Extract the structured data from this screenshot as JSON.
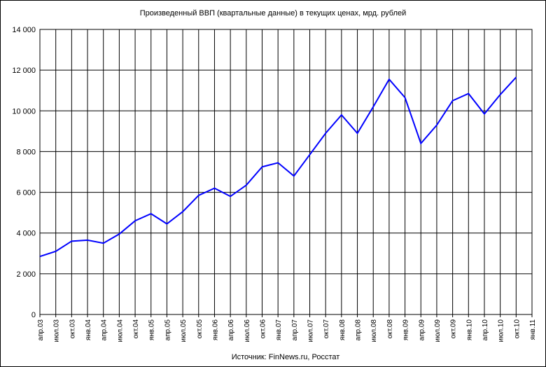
{
  "chart_data": {
    "type": "line",
    "title": "Произведенный ВВП (квартальные данные) в текущих ценах, мрд. рублей",
    "source": "Источник: FinNews.ru, Росстат",
    "categories": [
      "апр.03",
      "июл.03",
      "окт.03",
      "янв.04",
      "апр.04",
      "июл.04",
      "окт.04",
      "янв.05",
      "апр.05",
      "июл.05",
      "окт.05",
      "янв.06",
      "апр.06",
      "июл.06",
      "окт.06",
      "янв.07",
      "апр.07",
      "июл.07",
      "окт.07",
      "янв.08",
      "апр.08",
      "июл.08",
      "окт.08",
      "янв.09",
      "апр.09",
      "июл.09",
      "окт.09",
      "янв.10",
      "апр.10",
      "июл.10",
      "окт.10",
      "янв.11"
    ],
    "series": [
      {
        "color": "#0000ff",
        "values": [
          2850,
          3100,
          3600,
          3650,
          3500,
          3950,
          4600,
          4950,
          4450,
          5050,
          5850,
          6200,
          5800,
          6350,
          7250,
          7450,
          6800,
          7850,
          8900,
          9800,
          8900,
          10200,
          11550,
          10650,
          8400,
          9300,
          10500,
          10850,
          9850,
          10800,
          11650,
          null
        ]
      }
    ],
    "ylim": [
      0,
      14000
    ],
    "yticks": [
      {
        "value": 0,
        "label": "0"
      },
      {
        "value": 2000,
        "label": "2 000"
      },
      {
        "value": 4000,
        "label": "4 000"
      },
      {
        "value": 6000,
        "label": "6 000"
      },
      {
        "value": 8000,
        "label": "8 000"
      },
      {
        "value": 10000,
        "label": "10 000"
      },
      {
        "value": 12000,
        "label": "12 000"
      },
      {
        "value": 14000,
        "label": "14 000"
      }
    ],
    "grid": true
  }
}
